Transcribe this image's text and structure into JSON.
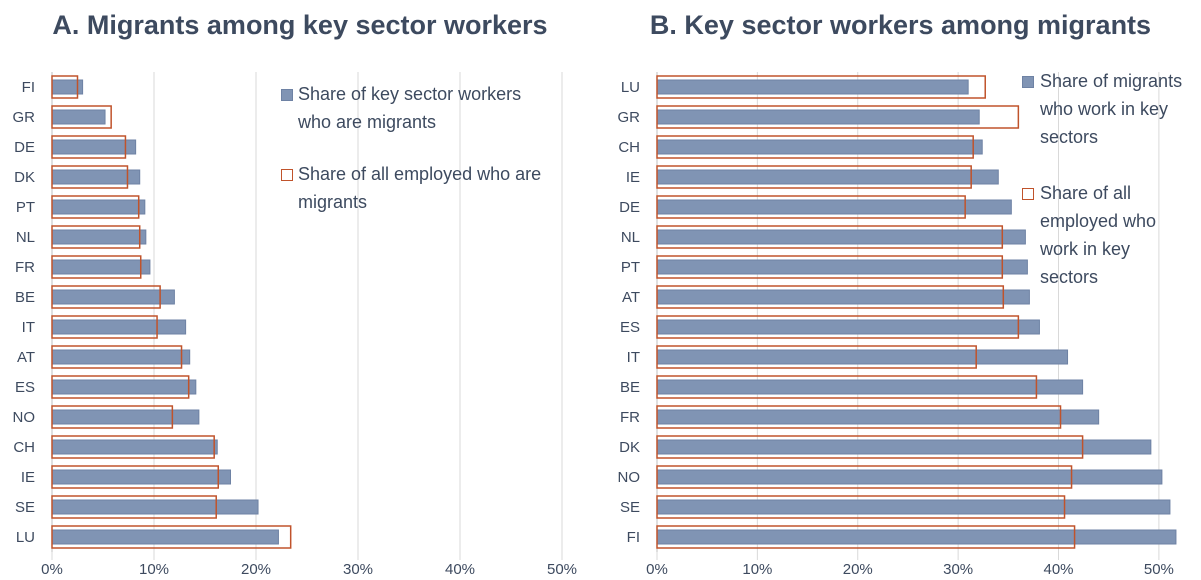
{
  "colors": {
    "bar_fill": "#8094b4",
    "bar_stroke": "#6e82a4",
    "outline": "#c0532b",
    "grid": "#d9d9d9",
    "text": "#3d4a5f"
  },
  "chart_data": [
    {
      "type": "bar",
      "orientation": "horizontal",
      "title": "A. Migrants among key sector workers",
      "categories": [
        "FI",
        "GR",
        "DE",
        "DK",
        "PT",
        "NL",
        "FR",
        "BE",
        "IT",
        "AT",
        "ES",
        "NO",
        "CH",
        "IE",
        "SE",
        "LU"
      ],
      "xlim": [
        0,
        50
      ],
      "ticks": [
        "0%",
        "10%",
        "20%",
        "30%",
        "40%",
        "50%"
      ],
      "grid": true,
      "legend_position": "top-right",
      "series": [
        {
          "name": "Share of key sector workers who are migrants",
          "style": "filled",
          "values": [
            3.0,
            5.2,
            8.2,
            8.6,
            9.1,
            9.2,
            9.6,
            12.0,
            13.1,
            13.5,
            14.1,
            14.4,
            16.2,
            17.5,
            20.2,
            22.2
          ]
        },
        {
          "name": "Share of all employed who are migrants",
          "style": "outline",
          "values": [
            2.5,
            5.8,
            7.2,
            7.4,
            8.5,
            8.6,
            8.7,
            10.6,
            10.3,
            12.7,
            13.4,
            11.8,
            15.9,
            16.3,
            16.1,
            23.4
          ]
        }
      ]
    },
    {
      "type": "bar",
      "orientation": "horizontal",
      "title": "B. Key sector workers among migrants",
      "categories": [
        "LU",
        "GR",
        "CH",
        "IE",
        "DE",
        "NL",
        "PT",
        "AT",
        "ES",
        "IT",
        "BE",
        "FR",
        "DK",
        "NO",
        "SE",
        "FI"
      ],
      "xlim": [
        0,
        53
      ],
      "ticks": [
        "0%",
        "10%",
        "20%",
        "30%",
        "40%",
        "50%"
      ],
      "grid": true,
      "legend_position": "top-right",
      "series": [
        {
          "name": "Share of migrants who work in key sectors",
          "style": "filled",
          "values": [
            31.0,
            32.1,
            32.4,
            34.0,
            35.3,
            36.7,
            36.9,
            37.1,
            38.1,
            40.9,
            42.4,
            44.0,
            49.2,
            50.3,
            51.1,
            51.7
          ]
        },
        {
          "name": "Share of all employed who work in key sectors",
          "style": "outline",
          "values": [
            32.7,
            36.0,
            31.5,
            31.3,
            30.7,
            34.4,
            34.4,
            34.5,
            36.0,
            31.8,
            37.8,
            40.2,
            42.4,
            41.3,
            40.6,
            41.6
          ]
        }
      ]
    }
  ]
}
